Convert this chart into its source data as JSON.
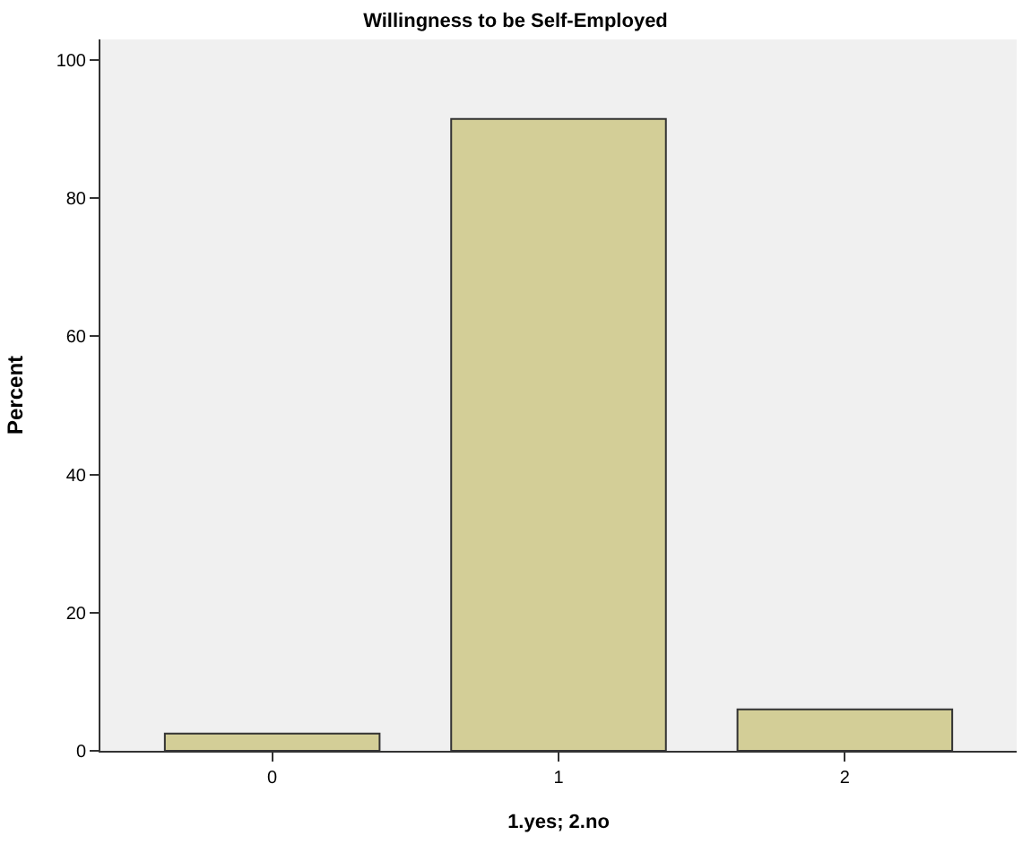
{
  "chart_data": {
    "type": "bar",
    "title": "Willingness to be Self-Employed",
    "xlabel": "1.yes; 2.no",
    "ylabel": "Percent",
    "categories": [
      "0",
      "1",
      "2"
    ],
    "values": [
      2.5,
      91.5,
      6.0
    ],
    "color": "#d3ce97",
    "ylim": [
      0,
      103
    ],
    "yticks": [
      0,
      20,
      40,
      60,
      80,
      100
    ],
    "grid": false
  }
}
